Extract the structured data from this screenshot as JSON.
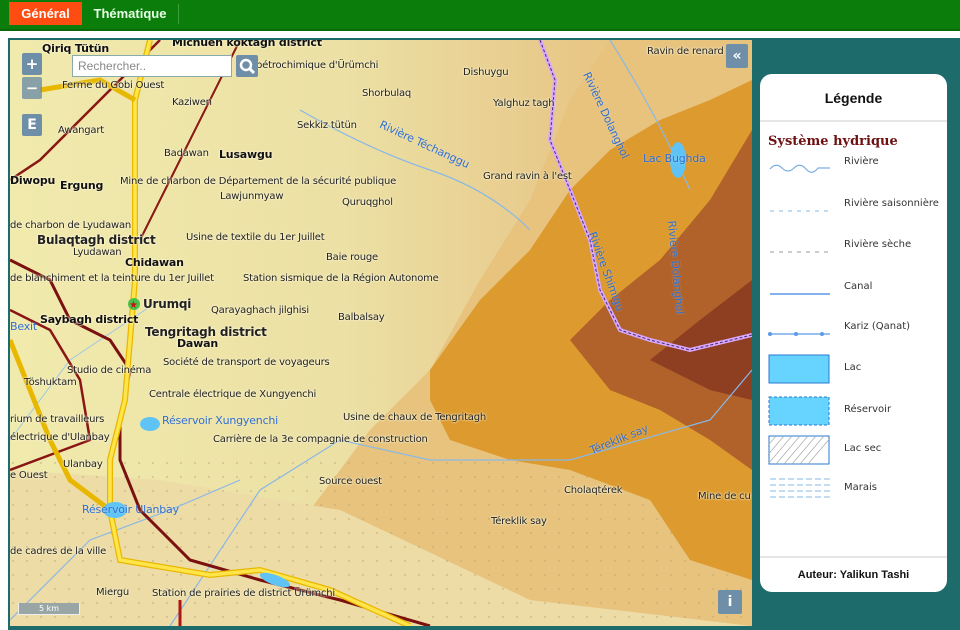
{
  "tabs": [
    {
      "label": "Général",
      "active": true
    },
    {
      "label": "Thématique",
      "active": false
    }
  ],
  "map": {
    "search": {
      "placeholder": "Rechercher.."
    },
    "controls": {
      "zoom_in": "+",
      "zoom_out": "−",
      "layers": "E",
      "collapse": "«",
      "info": "i"
    },
    "scale": "5 km",
    "labels": [
      "Qiriq Tütün",
      "Michuen koktagh district",
      "pétrochimique d'Ürümchi",
      "Ferme du Gobi Ouest",
      "Kaziwen",
      "Awangart",
      "Shorbulaq",
      "Dishuygu",
      "Yalghuz tagh",
      "Sekkiz tütün",
      "Rivière Téchanggu",
      "Ravin de renard",
      "Rivière Dolanghol",
      "Lac Bughda",
      "Badawan",
      "Lusawgu",
      "Mine de charbon de Département de la sécurité publique",
      "Diwopu",
      "Ergung",
      "Grand ravin à l'est",
      "Lawjunmyaw",
      "Quruqghol",
      "de charbon de Lyudawan",
      "Bulaqtagh district",
      "Lyudawan",
      "Chidawan",
      "Usine de textile du 1er Juillet",
      "Baie rouge",
      "Rivière Shimigu",
      "Rivière Dolanghol",
      "de blanchiment et la teinture du 1er Juillet",
      "Station sismique de la Région Autonome",
      "Urumqi",
      "Saybagh district",
      "Tengritagh district",
      "Qarayaghach jilghisi",
      "Balbalsay",
      "Bexit",
      "Dawan",
      "Société de transport de voyageurs",
      "Studio de cinéma",
      "Töshuktam",
      "Centrale électrique de Xungyenchi",
      "Usine de chaux de Tengritagh",
      "rium de travailleurs",
      "Réservoir Xungyenchi",
      "électrique d'Ulanbay",
      "Carrière de la 3e compagnie de construction",
      "Ulanbay",
      "e Ouest",
      "Téreklik say",
      "Source ouest",
      "Cholaqtérek",
      "Mine de cu",
      "Réservoir Ulanbay",
      "Téreklik say",
      "de cadres de la ville",
      "Miergu",
      "Station de prairies de district Ürümchi"
    ]
  },
  "legend": {
    "title": "Légende",
    "section": "Système hydrique",
    "items": [
      {
        "label": "Rivière",
        "symbol": "wavy-line"
      },
      {
        "label": "Rivière saisonnière",
        "symbol": "dashed-blue"
      },
      {
        "label": "Rivière sèche",
        "symbol": "dashed-grey"
      },
      {
        "label": "Canal",
        "symbol": "solid-line"
      },
      {
        "label": "Kariz (Qanat)",
        "symbol": "dotted-line"
      },
      {
        "label": "Lac",
        "symbol": "filled-box"
      },
      {
        "label": "Réservoir",
        "symbol": "dashed-box"
      },
      {
        "label": "Lac sec",
        "symbol": "hatched-box"
      },
      {
        "label": "Marais",
        "symbol": "marsh"
      }
    ],
    "author": "Auteur: Yalikun Tashi"
  },
  "colors": {
    "topbar": "#0b7d0b",
    "active_tab": "#ff4d12",
    "frame": "#1d6b6b",
    "water": "#5fd0ff",
    "mountain": "#d98f1f",
    "peak": "#9a4a26"
  }
}
